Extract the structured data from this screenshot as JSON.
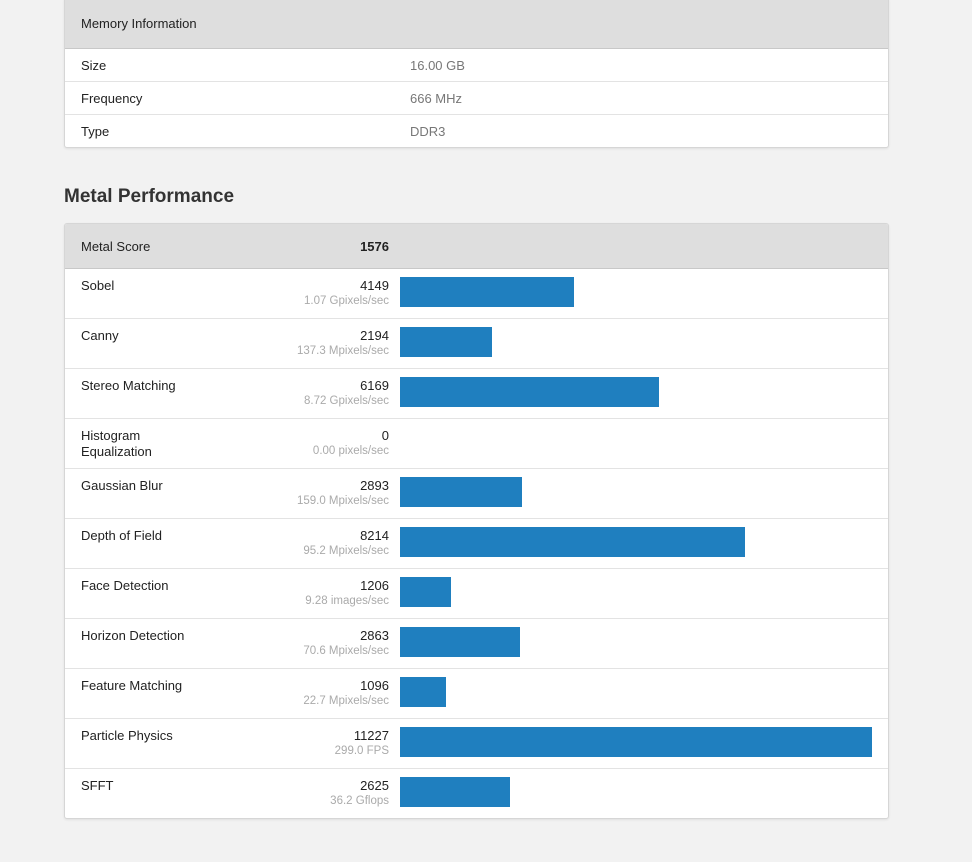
{
  "memory": {
    "title": "Memory Information",
    "rows": [
      {
        "label": "Size",
        "value": "16.00 GB"
      },
      {
        "label": "Frequency",
        "value": "666 MHz"
      },
      {
        "label": "Type",
        "value": "DDR3"
      }
    ]
  },
  "metal": {
    "section_title": "Metal Performance",
    "score_label": "Metal Score",
    "score": "1576",
    "bar_color": "#1f7fbf",
    "rows": [
      {
        "name": "Sobel",
        "score": 4149,
        "unit": "1.07 Gpixels/sec"
      },
      {
        "name": "Canny",
        "score": 2194,
        "unit": "137.3 Mpixels/sec"
      },
      {
        "name": "Stereo Matching",
        "score": 6169,
        "unit": "8.72 Gpixels/sec"
      },
      {
        "name": "Histogram Equalization",
        "score": 0,
        "unit": "0.00 pixels/sec"
      },
      {
        "name": "Gaussian Blur",
        "score": 2893,
        "unit": "159.0 Mpixels/sec"
      },
      {
        "name": "Depth of Field",
        "score": 8214,
        "unit": "95.2 Mpixels/sec"
      },
      {
        "name": "Face Detection",
        "score": 1206,
        "unit": "9.28 images/sec"
      },
      {
        "name": "Horizon Detection",
        "score": 2863,
        "unit": "70.6 Mpixels/sec"
      },
      {
        "name": "Feature Matching",
        "score": 1096,
        "unit": "22.7 Mpixels/sec"
      },
      {
        "name": "Particle Physics",
        "score": 11227,
        "unit": "299.0 FPS"
      },
      {
        "name": "SFFT",
        "score": 2625,
        "unit": "36.2 Gflops"
      }
    ]
  }
}
